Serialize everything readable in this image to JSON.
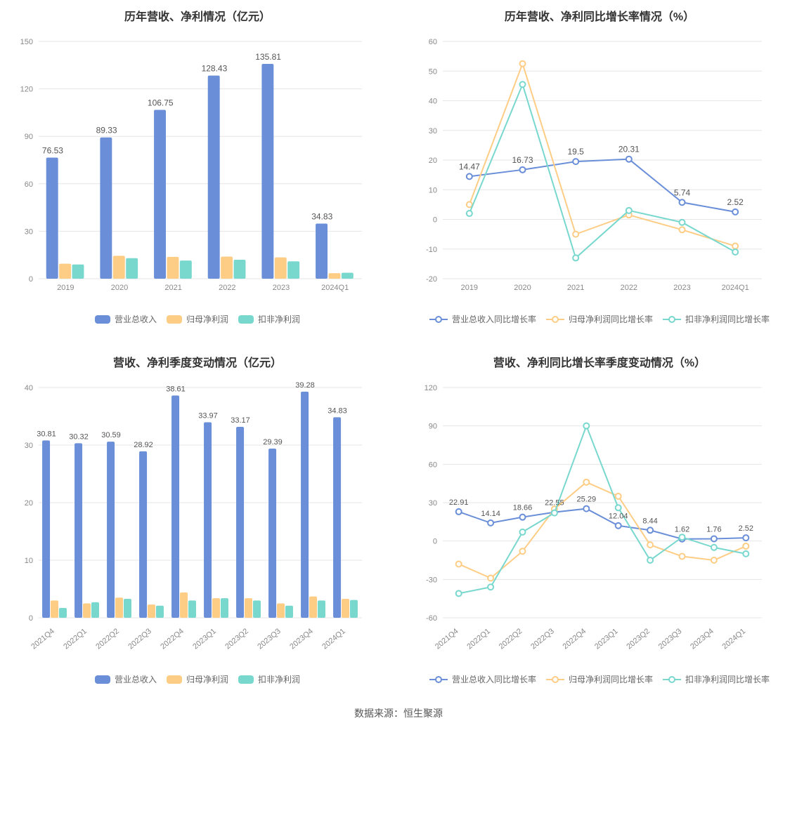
{
  "colors": {
    "background": "#ffffff",
    "grid": "#e6e6e6",
    "axis_text": "#888888",
    "title_text": "#333333",
    "label_text": "#666666",
    "series_revenue": "#6a8fd8",
    "series_profit_parent": "#fecd85",
    "series_profit_nonrec": "#79d8ce",
    "line_revenue": "#6a8fd8",
    "line_profit_parent": "#fecd85",
    "line_profit_nonrec": "#79d8ce"
  },
  "footer": "数据来源：恒生聚源",
  "chart_tl": {
    "title": "历年营收、净利情况（亿元）",
    "type": "bar",
    "categories": [
      "2019",
      "2020",
      "2021",
      "2022",
      "2023",
      "2024Q1"
    ],
    "series": [
      {
        "name": "营业总收入",
        "color": "#6a8fd8",
        "values": [
          76.53,
          89.33,
          106.75,
          128.43,
          135.81,
          34.83
        ]
      },
      {
        "name": "归母净利润",
        "color": "#fecd85",
        "values": [
          9.5,
          14.5,
          13.8,
          14.0,
          13.5,
          3.5
        ]
      },
      {
        "name": "扣非净利润",
        "color": "#79d8ce",
        "values": [
          9.0,
          13.0,
          11.5,
          12.0,
          11.0,
          3.8
        ]
      }
    ],
    "value_labels": [
      76.53,
      89.33,
      106.75,
      128.43,
      135.81,
      34.83
    ],
    "ylim": [
      0,
      150
    ],
    "ytick_step": 30,
    "bar_group_width": 0.72,
    "title_fontsize": 16,
    "axis_fontsize": 11,
    "label_fontsize": 12
  },
  "chart_tr": {
    "title": "历年营收、净利同比增长率情况（%）",
    "type": "line",
    "categories": [
      "2019",
      "2020",
      "2021",
      "2022",
      "2023",
      "2024Q1"
    ],
    "series": [
      {
        "name": "营业总收入同比增长率",
        "color": "#6a8fd8",
        "values": [
          14.47,
          16.73,
          19.5,
          20.31,
          5.74,
          2.52
        ]
      },
      {
        "name": "归母净利润同比增长率",
        "color": "#fecd85",
        "values": [
          5.0,
          52.5,
          -5.0,
          1.5,
          -3.5,
          -9.0
        ]
      },
      {
        "name": "扣非净利润同比增长率",
        "color": "#79d8ce",
        "values": [
          2.0,
          45.5,
          -13.0,
          3.0,
          -1.0,
          -11.0
        ]
      }
    ],
    "value_labels": [
      14.47,
      16.73,
      19.5,
      20.31,
      5.74,
      2.52
    ],
    "ylim": [
      -20,
      60
    ],
    "ytick_step": 10,
    "title_fontsize": 16,
    "axis_fontsize": 11,
    "label_fontsize": 12,
    "marker_radius": 4,
    "line_width": 2
  },
  "chart_bl": {
    "title": "营收、净利季度变动情况（亿元）",
    "type": "bar",
    "categories": [
      "2021Q4",
      "2022Q1",
      "2022Q2",
      "2022Q3",
      "2022Q4",
      "2023Q1",
      "2023Q2",
      "2023Q3",
      "2023Q4",
      "2024Q1"
    ],
    "series": [
      {
        "name": "营业总收入",
        "color": "#6a8fd8",
        "values": [
          30.81,
          30.32,
          30.59,
          28.92,
          38.61,
          33.97,
          33.17,
          29.39,
          39.28,
          34.83
        ]
      },
      {
        "name": "归母净利润",
        "color": "#fecd85",
        "values": [
          3.0,
          2.5,
          3.5,
          2.3,
          4.4,
          3.4,
          3.4,
          2.5,
          3.7,
          3.3
        ]
      },
      {
        "name": "扣非净利润",
        "color": "#79d8ce",
        "values": [
          1.7,
          2.7,
          3.3,
          2.1,
          3.0,
          3.4,
          3.0,
          2.1,
          3.0,
          3.1
        ]
      }
    ],
    "value_labels": [
      30.81,
      30.32,
      30.59,
      28.92,
      38.61,
      33.97,
      33.17,
      29.39,
      39.28,
      34.83
    ],
    "ylim": [
      0,
      40
    ],
    "ytick_step": 10,
    "bar_group_width": 0.78,
    "title_fontsize": 16,
    "axis_fontsize": 11,
    "label_fontsize": 11,
    "x_label_rotate": -40
  },
  "chart_br": {
    "title": "营收、净利同比增长率季度变动情况（%）",
    "type": "line",
    "categories": [
      "2021Q4",
      "2022Q1",
      "2022Q2",
      "2022Q3",
      "2022Q4",
      "2023Q1",
      "2023Q2",
      "2023Q3",
      "2023Q4",
      "2024Q1"
    ],
    "series": [
      {
        "name": "营业总收入同比增长率",
        "color": "#6a8fd8",
        "values": [
          22.91,
          14.14,
          18.66,
          22.55,
          25.29,
          12.04,
          8.44,
          1.62,
          1.76,
          2.52
        ]
      },
      {
        "name": "归母净利润同比增长率",
        "color": "#fecd85",
        "values": [
          -18.0,
          -29.0,
          -8.0,
          25.0,
          46.0,
          35.0,
          -3.0,
          -12.0,
          -15.0,
          -4.0
        ]
      },
      {
        "name": "扣非净利润同比增长率",
        "color": "#79d8ce",
        "values": [
          -41.0,
          -36.0,
          7.0,
          22.0,
          90.0,
          26.0,
          -15.0,
          3.0,
          -5.0,
          -10.0
        ]
      }
    ],
    "value_labels": [
      22.91,
      14.14,
      18.66,
      22.55,
      25.29,
      12.04,
      8.44,
      1.62,
      1.76,
      2.52
    ],
    "ylim": [
      -60,
      120
    ],
    "ytick_step": 30,
    "title_fontsize": 16,
    "axis_fontsize": 11,
    "label_fontsize": 11,
    "marker_radius": 4,
    "line_width": 2,
    "x_label_rotate": -40
  }
}
